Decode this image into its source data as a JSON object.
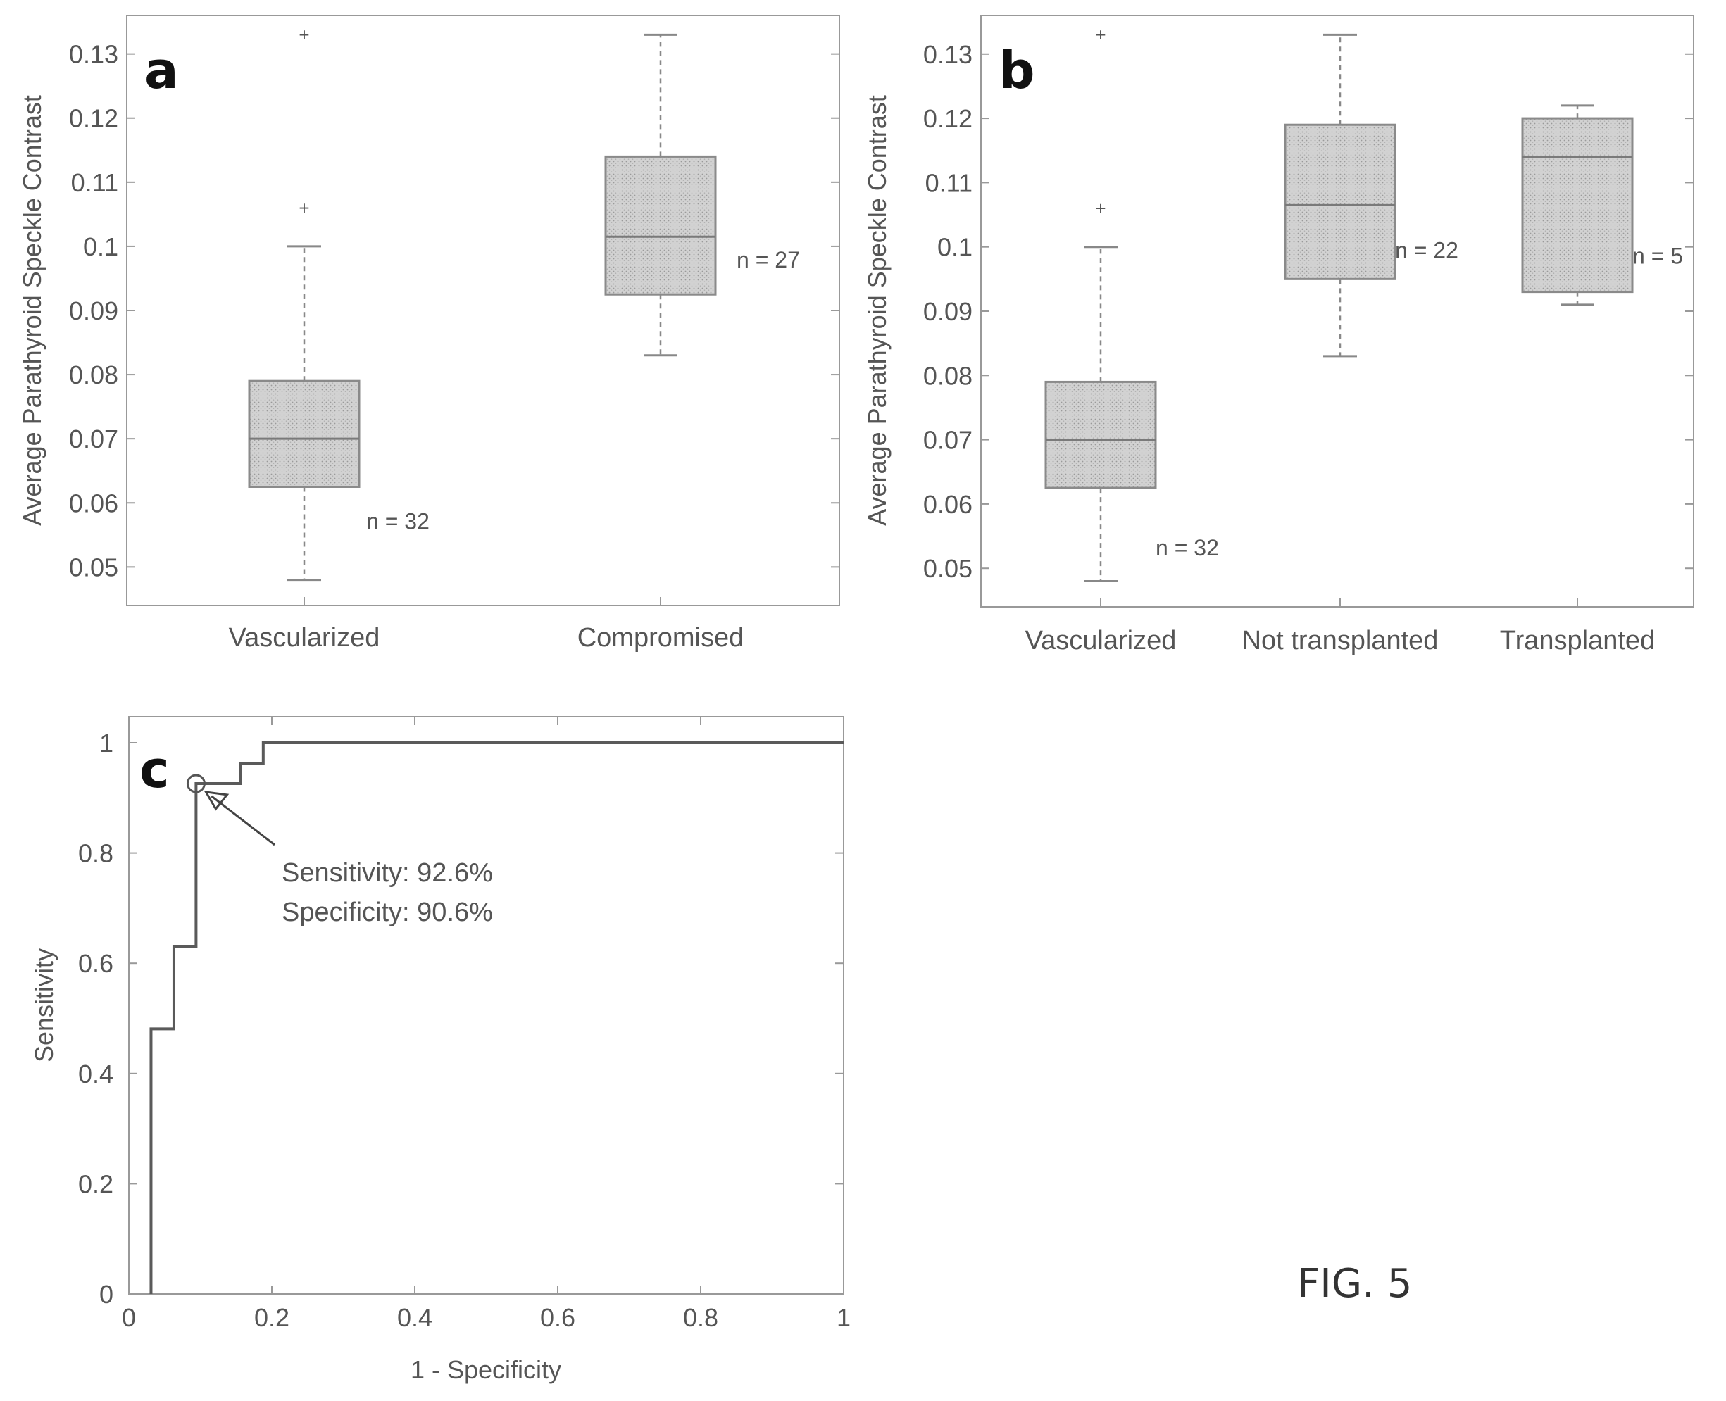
{
  "figure": {
    "label": "FIG. 5"
  },
  "chart_data": [
    {
      "panel": "a",
      "type": "box",
      "ylabel": "Average Parathyroid Speckle Contrast",
      "ylim": [
        0.044,
        0.136
      ],
      "yticks": [
        "0.05",
        "0.06",
        "0.07",
        "0.08",
        "0.09",
        "0.1",
        "0.11",
        "0.12",
        "0.13"
      ],
      "categories": [
        "Vascularized",
        "Compromised"
      ],
      "boxes": [
        {
          "category": "Vascularized",
          "whisker_low": 0.048,
          "q1": 0.0625,
          "median": 0.07,
          "q3": 0.079,
          "whisker_high": 0.1,
          "outliers": [
            0.106,
            0.133
          ],
          "n_label": "n = 32"
        },
        {
          "category": "Compromised",
          "whisker_low": 0.083,
          "q1": 0.0925,
          "median": 0.1015,
          "q3": 0.114,
          "whisker_high": 0.133,
          "outliers": [],
          "n_label": "n = 27"
        }
      ]
    },
    {
      "panel": "b",
      "type": "box",
      "ylabel": "Average Parathyroid Speckle Contrast",
      "ylim": [
        0.044,
        0.136
      ],
      "yticks": [
        "0.05",
        "0.06",
        "0.07",
        "0.08",
        "0.09",
        "0.1",
        "0.11",
        "0.12",
        "0.13"
      ],
      "categories": [
        "Vascularized",
        "Not transplanted",
        "Transplanted"
      ],
      "boxes": [
        {
          "category": "Vascularized",
          "whisker_low": 0.048,
          "q1": 0.0625,
          "median": 0.07,
          "q3": 0.079,
          "whisker_high": 0.1,
          "outliers": [
            0.106,
            0.133
          ],
          "n_label": "n = 32"
        },
        {
          "category": "Not transplanted",
          "whisker_low": 0.083,
          "q1": 0.095,
          "median": 0.1065,
          "q3": 0.119,
          "whisker_high": 0.133,
          "outliers": [],
          "n_label": "n = 22"
        },
        {
          "category": "Transplanted",
          "whisker_low": 0.091,
          "q1": 0.093,
          "median": 0.114,
          "q3": 0.12,
          "whisker_high": 0.122,
          "outliers": [],
          "n_label": "n = 5"
        }
      ]
    },
    {
      "panel": "c",
      "type": "line",
      "xlabel": "1 - Specificity",
      "ylabel": "Sensitivity",
      "xlim": [
        0,
        1
      ],
      "ylim": [
        0,
        1
      ],
      "xticks": [
        "0",
        "0.2",
        "0.4",
        "0.6",
        "0.8",
        "1"
      ],
      "yticks": [
        "0",
        "0.2",
        "0.4",
        "0.6",
        "0.8",
        "1"
      ],
      "series": [
        {
          "x": [
            0.031,
            0.031,
            0.063,
            0.063,
            0.094,
            0.094,
            0.156,
            0.156,
            0.188,
            0.188,
            1.0
          ],
          "y": [
            0.0,
            0.481,
            0.481,
            0.63,
            0.63,
            0.926,
            0.926,
            0.963,
            0.963,
            1.0,
            1.0
          ]
        }
      ],
      "highlight_point": {
        "x": 0.094,
        "y": 0.926
      },
      "annotation": [
        "Sensitivity: 92.6%",
        "Specificity: 90.6%"
      ]
    }
  ]
}
